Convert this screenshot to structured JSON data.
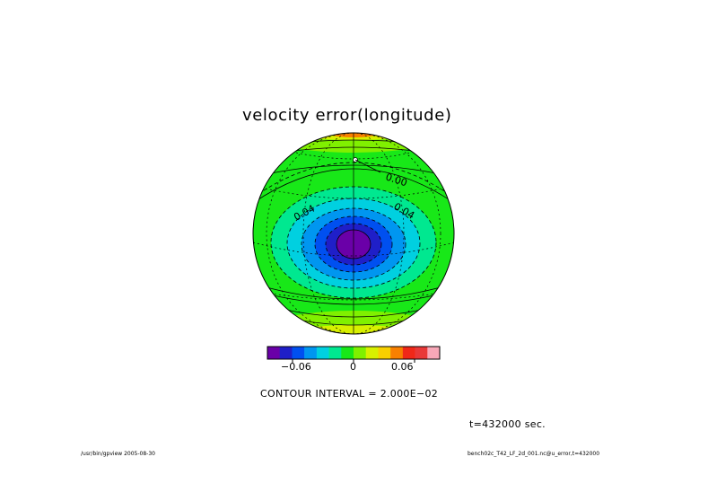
{
  "title": "velocity error(longitude)",
  "colorbar": {
    "colors": [
      "#6a00a8",
      "#1f1fc8",
      "#0050f0",
      "#0096f0",
      "#00d0e0",
      "#00e890",
      "#18e818",
      "#80f000",
      "#d8f000",
      "#f8d000",
      "#f88000",
      "#f02818",
      "#e83838",
      "#f8a8b8"
    ],
    "tick_labels": [
      "−0.06",
      "0",
      "0.06"
    ]
  },
  "contour_labels": [
    "0.00",
    "0.04",
    "0.04"
  ],
  "contour_interval": "CONTOUR INTERVAL = 2.000E−02",
  "time_label": "t=432000 sec.",
  "footer_left": "/usr/bin/gpview  2005-08-30",
  "footer_right": "bench02c_T42_LF_2d_001.nc@u_error,t=432000"
}
